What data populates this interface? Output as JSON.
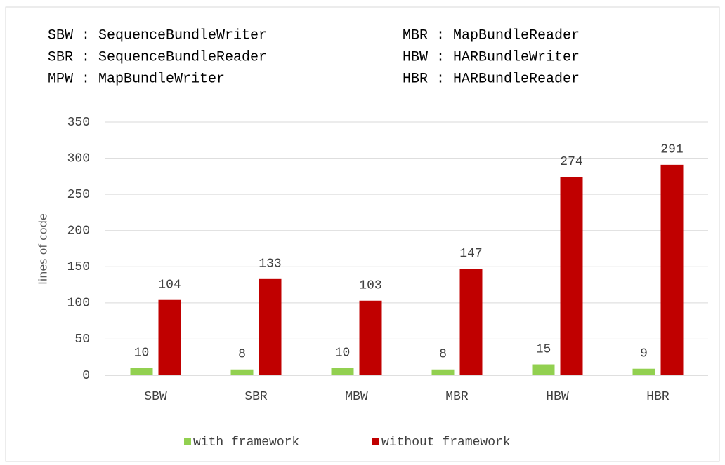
{
  "chart_data": {
    "type": "bar",
    "annotations": [
      "SBW : SequenceBundleWriter",
      "MBR : MapBundleReader",
      "SBR : SequenceBundleReader",
      "HBW : HARBundleWriter",
      "MPW : MapBundleWriter",
      "HBR : HARBundleReader"
    ],
    "y_label": "lines of code",
    "categories": [
      "SBW",
      "SBR",
      "MBW",
      "MBR",
      "HBW",
      "HBR"
    ],
    "series": [
      {
        "name": "with framework",
        "color": "#92d050",
        "values": [
          10,
          8,
          10,
          8,
          15,
          9
        ]
      },
      {
        "name": "without framework",
        "color": "#c00000",
        "values": [
          104,
          133,
          103,
          147,
          274,
          291
        ]
      }
    ],
    "ylim": [
      0,
      350
    ],
    "yticks": [
      0,
      50,
      100,
      150,
      200,
      250,
      300,
      350
    ],
    "grid": true,
    "legend": "bottom"
  }
}
